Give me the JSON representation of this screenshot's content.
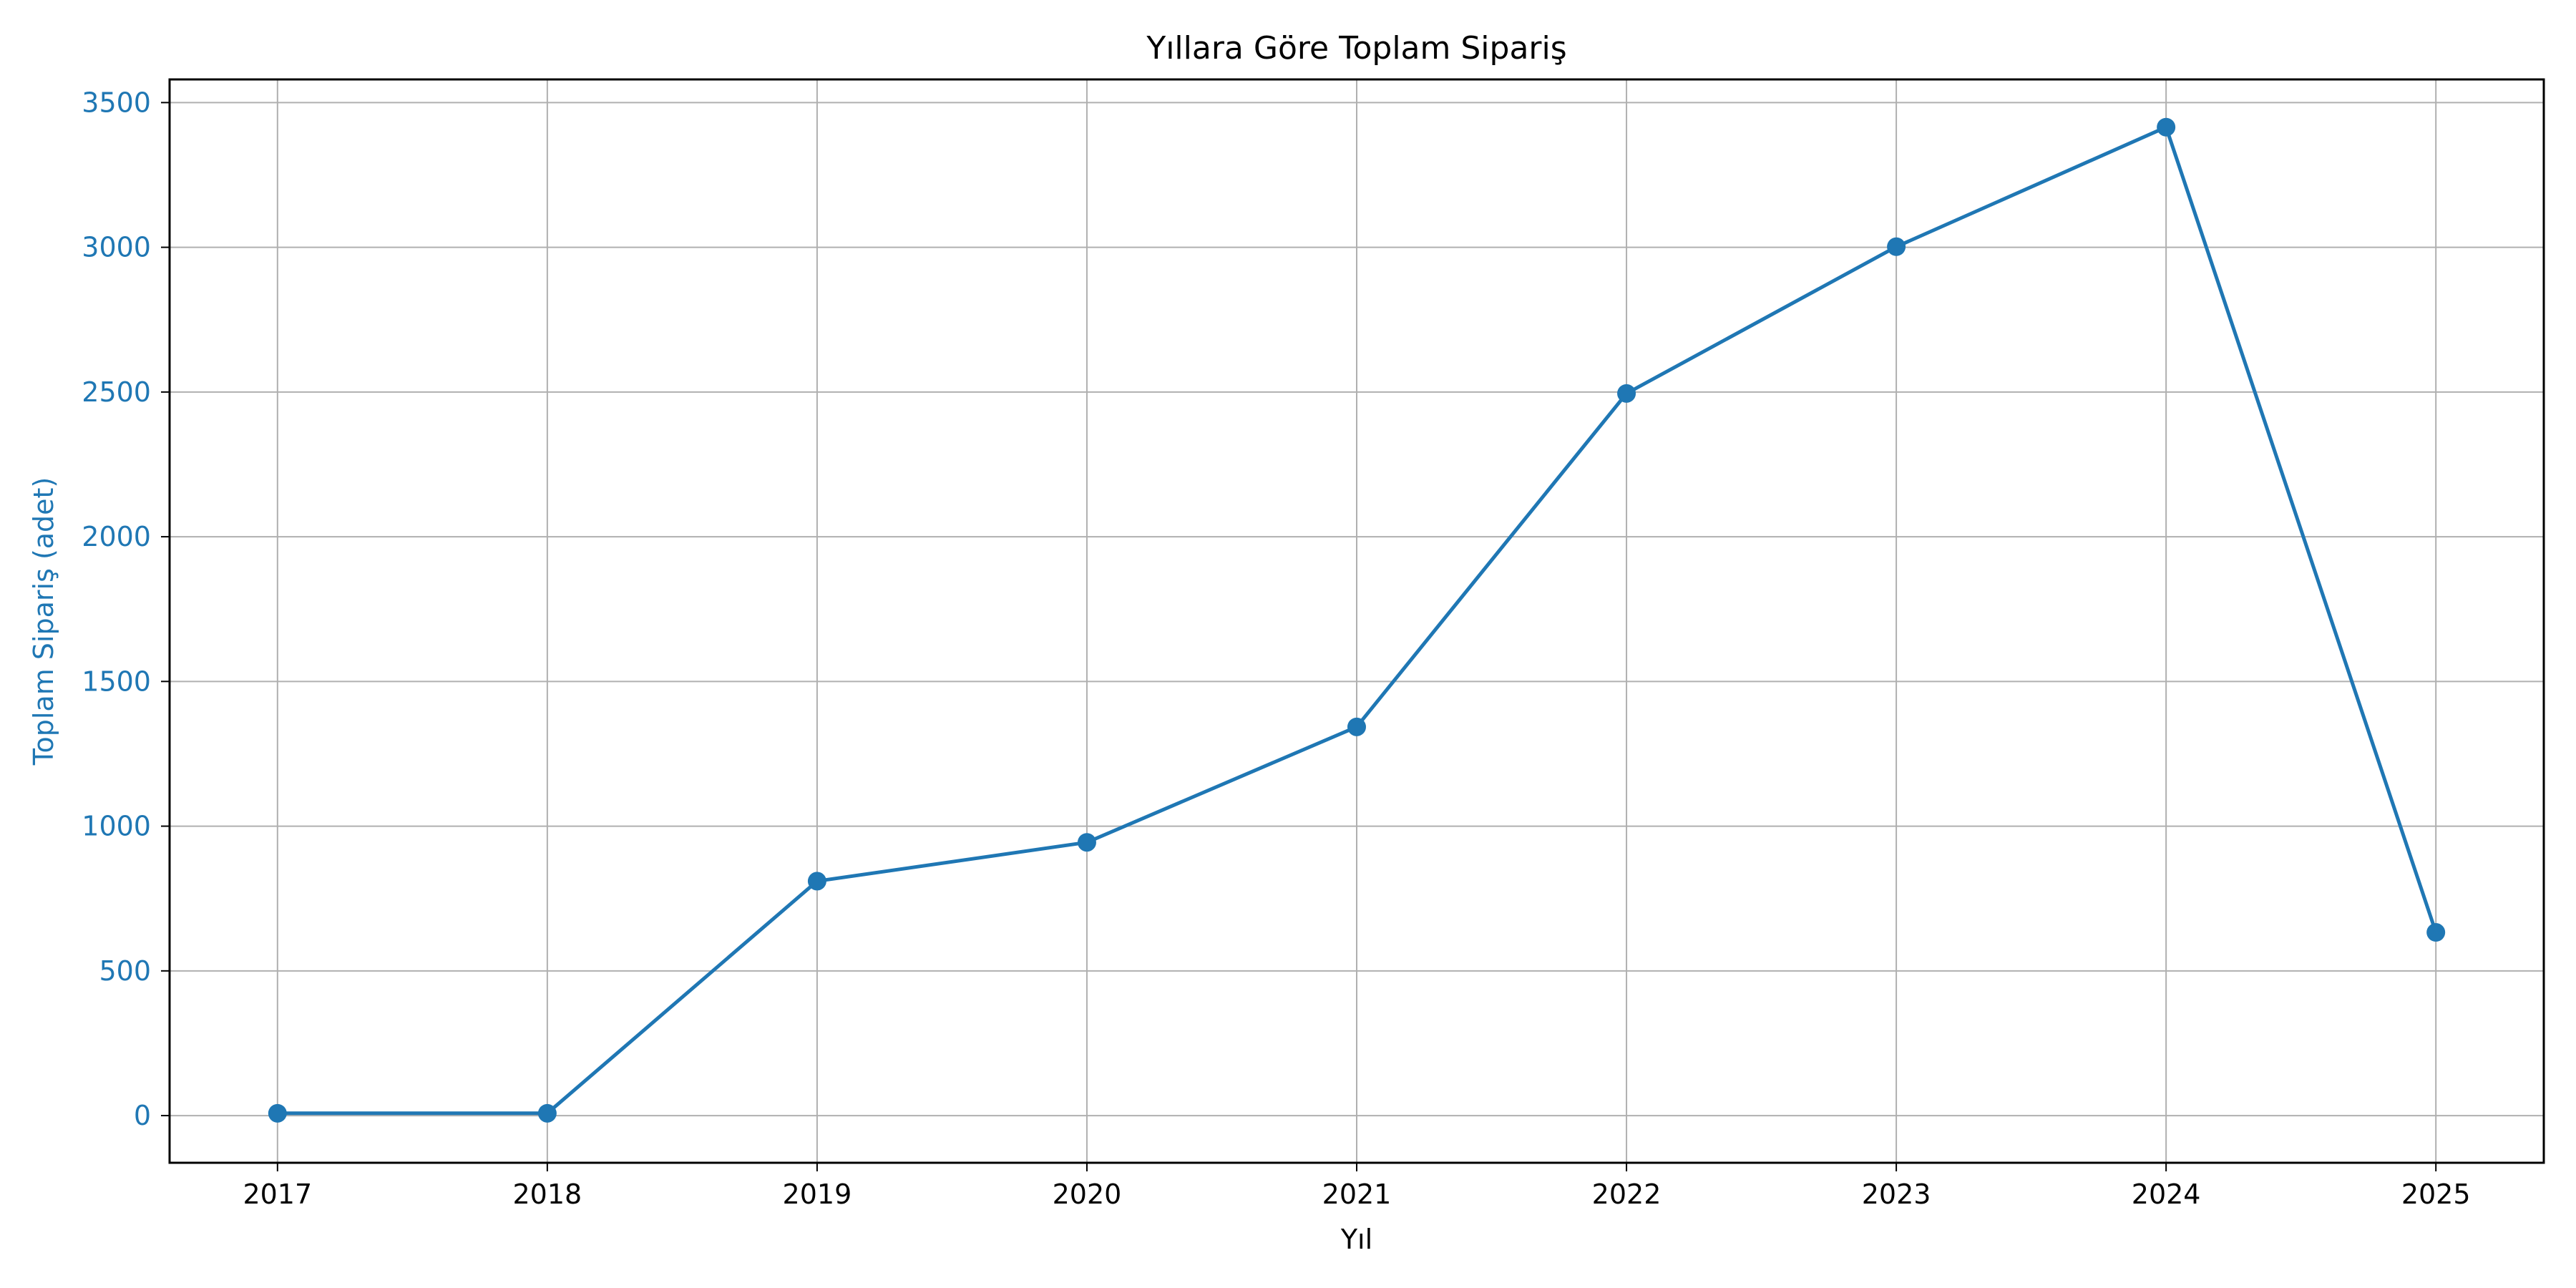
{
  "chart_data": {
    "type": "line",
    "title": "Yıllara Göre Toplam Sipariş",
    "xlabel": "Yıl",
    "ylabel": "Toplam Sipariş (adet)",
    "x": [
      2017,
      2018,
      2019,
      2020,
      2021,
      2022,
      2023,
      2024,
      2025
    ],
    "series": [
      {
        "values": [
          8,
          8,
          810,
          944,
          1343,
          2495,
          3002,
          3415,
          633
        ],
        "color": "#1f77b4",
        "marker": "circle"
      }
    ],
    "x_ticks": [
      "2017",
      "2018",
      "2019",
      "2020",
      "2021",
      "2022",
      "2023",
      "2024",
      "2025"
    ],
    "y_ticks": [
      "0",
      "500",
      "1000",
      "1500",
      "2000",
      "2500",
      "3000",
      "3500"
    ],
    "xlim": [
      2016.6,
      2025.4
    ],
    "ylim": [
      -163,
      3580
    ],
    "grid": true,
    "colors": {
      "line": "#1f77b4",
      "ylabel": "#1f77b4",
      "y_ticks": "#1f77b4",
      "grid": "#b0b0b0",
      "axes": "#000000",
      "text": "#000000"
    }
  }
}
